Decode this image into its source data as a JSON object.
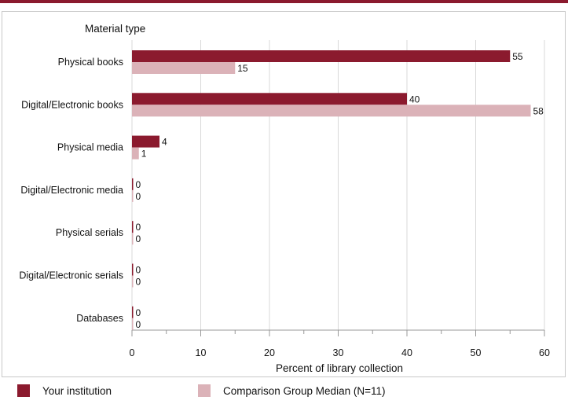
{
  "colors": {
    "accent": "#8b1a2e",
    "series1": "#8b1a2e",
    "series2": "#dbb2b8",
    "grid": "#d9d9d9"
  },
  "chart_data": {
    "type": "bar",
    "orientation": "horizontal",
    "ytitle": "Material type",
    "xlabel": "Percent of library collection",
    "xlim": [
      0,
      60
    ],
    "xticks": [
      0,
      10,
      20,
      30,
      40,
      50,
      60
    ],
    "grid": true,
    "legend_position": "bottom",
    "categories": [
      "Physical books",
      "Digital/Electronic books",
      "Physical media",
      "Digital/Electronic media",
      "Physical serials",
      "Digital/Electronic serials",
      "Databases"
    ],
    "series": [
      {
        "name": "Your institution",
        "color": "#8b1a2e",
        "values": [
          55,
          40,
          4,
          0,
          0,
          0,
          0
        ]
      },
      {
        "name": "Comparison Group Median (N=11)",
        "color": "#dbb2b8",
        "values": [
          15,
          58,
          1,
          0,
          0,
          0,
          0
        ]
      }
    ]
  }
}
